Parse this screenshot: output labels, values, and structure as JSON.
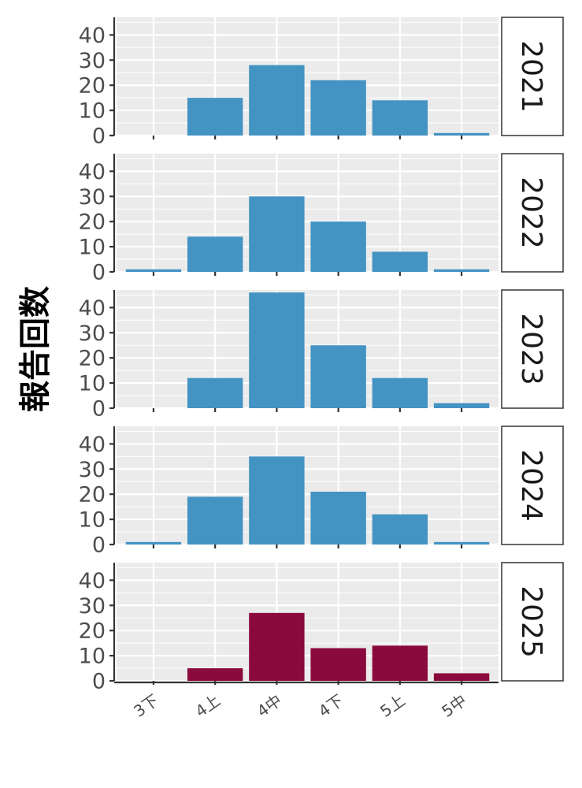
{
  "chart_data": {
    "type": "bar",
    "ylabel": "報告回数",
    "xlabel": "",
    "ylim": [
      0,
      47
    ],
    "yticks": [
      0,
      10,
      20,
      30,
      40
    ],
    "grid": true,
    "categories": [
      "3下",
      "4上",
      "4中",
      "4下",
      "5上",
      "5中"
    ],
    "facets": [
      {
        "label": "2021",
        "color": "#4393c3",
        "values": [
          0,
          15,
          28,
          22,
          14,
          1
        ]
      },
      {
        "label": "2022",
        "color": "#4393c3",
        "values": [
          1,
          14,
          30,
          20,
          8,
          1
        ]
      },
      {
        "label": "2023",
        "color": "#4393c3",
        "values": [
          0,
          12,
          46,
          25,
          12,
          2
        ]
      },
      {
        "label": "2024",
        "color": "#4393c3",
        "values": [
          1,
          19,
          35,
          21,
          12,
          1
        ]
      },
      {
        "label": "2025",
        "color": "#8b0a3d",
        "values": [
          0,
          5,
          27,
          13,
          14,
          3
        ]
      }
    ]
  }
}
